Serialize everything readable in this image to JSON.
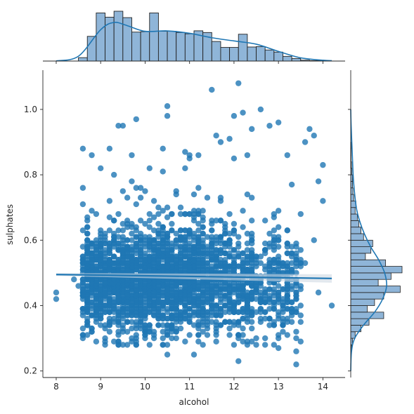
{
  "chart_data": {
    "type": "scatter",
    "subtype": "jointplot-with-regression",
    "title": "",
    "xlabel": "alcohol",
    "ylabel": "sulphates",
    "xlim": [
      7.7,
      14.5
    ],
    "ylim": [
      0.18,
      1.12
    ],
    "x_ticks": [
      8,
      9,
      10,
      11,
      12,
      13,
      14
    ],
    "y_ticks": [
      0.2,
      0.4,
      0.6,
      0.8,
      1.0
    ],
    "x_tick_labels": [
      "8",
      "9",
      "10",
      "11",
      "12",
      "13",
      "14"
    ],
    "y_tick_labels": [
      "0.2",
      "0.4",
      "0.6",
      "0.8",
      "1.0"
    ],
    "grid": false,
    "legend": "none",
    "point_color": "#1f77b4",
    "point_count_estimate": 3000,
    "regression": {
      "x": [
        8.0,
        14.2
      ],
      "y": [
        0.495,
        0.483
      ]
    },
    "outlier_points": [
      {
        "x": 12.1,
        "y": 1.08
      },
      {
        "x": 11.5,
        "y": 1.06
      },
      {
        "x": 10.5,
        "y": 1.01
      },
      {
        "x": 12.6,
        "y": 1.0
      },
      {
        "x": 12.0,
        "y": 0.98
      },
      {
        "x": 12.2,
        "y": 0.99
      },
      {
        "x": 10.5,
        "y": 0.98
      },
      {
        "x": 9.8,
        "y": 0.97
      },
      {
        "x": 13.0,
        "y": 0.96
      },
      {
        "x": 9.5,
        "y": 0.95
      },
      {
        "x": 12.8,
        "y": 0.95
      },
      {
        "x": 12.4,
        "y": 0.94
      },
      {
        "x": 13.7,
        "y": 0.94
      },
      {
        "x": 13.8,
        "y": 0.92
      },
      {
        "x": 11.6,
        "y": 0.92
      },
      {
        "x": 9.4,
        "y": 0.95
      },
      {
        "x": 11.9,
        "y": 0.91
      },
      {
        "x": 11.7,
        "y": 0.9
      },
      {
        "x": 13.6,
        "y": 0.9
      },
      {
        "x": 8.6,
        "y": 0.88
      },
      {
        "x": 9.2,
        "y": 0.88
      },
      {
        "x": 10.4,
        "y": 0.88
      },
      {
        "x": 10.9,
        "y": 0.87
      },
      {
        "x": 12.3,
        "y": 0.86
      },
      {
        "x": 13.2,
        "y": 0.86
      },
      {
        "x": 11.2,
        "y": 0.86
      },
      {
        "x": 14.0,
        "y": 0.83
      },
      {
        "x": 13.9,
        "y": 0.78
      },
      {
        "x": 14.0,
        "y": 0.72
      },
      {
        "x": 14.2,
        "y": 0.4
      },
      {
        "x": 8.0,
        "y": 0.44
      },
      {
        "x": 8.0,
        "y": 0.42
      },
      {
        "x": 13.4,
        "y": 0.22
      },
      {
        "x": 12.1,
        "y": 0.23
      },
      {
        "x": 10.5,
        "y": 0.25
      },
      {
        "x": 11.1,
        "y": 0.25
      },
      {
        "x": 8.4,
        "y": 0.48
      },
      {
        "x": 8.5,
        "y": 0.46
      },
      {
        "x": 8.6,
        "y": 0.76
      },
      {
        "x": 13.8,
        "y": 0.6
      },
      {
        "x": 13.6,
        "y": 0.53
      },
      {
        "x": 13.9,
        "y": 0.44
      },
      {
        "x": 13.5,
        "y": 0.29
      },
      {
        "x": 13.0,
        "y": 0.27
      },
      {
        "x": 13.4,
        "y": 0.26
      }
    ],
    "cluster_bands": [
      {
        "x_min": 8.6,
        "x_max": 10.2,
        "y_center": 0.47,
        "y_spread": 0.075,
        "share": 0.42
      },
      {
        "x_min": 10.2,
        "x_max": 11.3,
        "y_center": 0.48,
        "y_spread": 0.08,
        "share": 0.3
      },
      {
        "x_min": 11.3,
        "x_max": 12.4,
        "y_center": 0.47,
        "y_spread": 0.08,
        "share": 0.18
      },
      {
        "x_min": 12.4,
        "x_max": 13.5,
        "y_center": 0.46,
        "y_spread": 0.075,
        "share": 0.1
      }
    ],
    "marginal_x_hist": {
      "bin_edges": [
        8.5,
        8.7,
        8.9,
        9.1,
        9.3,
        9.5,
        9.7,
        9.9,
        10.1,
        10.3,
        10.5,
        10.7,
        10.9,
        11.1,
        11.3,
        11.5,
        11.7,
        11.9,
        12.1,
        12.3,
        12.5,
        12.7,
        12.9,
        13.1,
        13.3,
        13.5,
        13.7,
        13.9,
        14.1
      ],
      "counts": [
        8,
        58,
        113,
        103,
        117,
        102,
        68,
        69,
        113,
        70,
        70,
        67,
        64,
        71,
        67,
        46,
        32,
        32,
        63,
        33,
        34,
        26,
        21,
        11,
        6,
        2,
        1,
        1
      ],
      "kde_x": [
        8.0,
        8.5,
        9.0,
        9.3,
        9.6,
        10.0,
        10.5,
        11.0,
        11.5,
        12.0,
        12.5,
        13.0,
        13.5,
        14.0,
        14.2
      ],
      "kde_y": [
        0.5,
        12,
        78,
        96,
        88,
        74,
        75,
        69,
        58,
        50,
        42,
        24,
        8,
        2,
        1
      ]
    },
    "marginal_y_hist": {
      "bin_edges": [
        0.22,
        0.24,
        0.26,
        0.28,
        0.3,
        0.32,
        0.34,
        0.36,
        0.38,
        0.4,
        0.42,
        0.44,
        0.46,
        0.48,
        0.5,
        0.52,
        0.54,
        0.56,
        0.58,
        0.6,
        0.62,
        0.64,
        0.66,
        0.68,
        0.7,
        0.72,
        0.74,
        0.76,
        0.78,
        0.8,
        0.82,
        0.84,
        0.86,
        0.88,
        0.9
      ],
      "counts": [
        1,
        1,
        2,
        5,
        12,
        28,
        50,
        90,
        45,
        65,
        90,
        135,
        75,
        110,
        140,
        95,
        40,
        55,
        60,
        35,
        28,
        22,
        18,
        12,
        14,
        8,
        6,
        5,
        5,
        3,
        2,
        1,
        1,
        1
      ],
      "kde_y": [
        0.2,
        0.26,
        0.3,
        0.34,
        0.38,
        0.42,
        0.46,
        0.5,
        0.54,
        0.58,
        0.62,
        0.66,
        0.7,
        0.78,
        0.86,
        0.95,
        1.0
      ],
      "kde_x": [
        0,
        2,
        10,
        32,
        60,
        80,
        90,
        85,
        70,
        50,
        34,
        22,
        14,
        7,
        4,
        1,
        0
      ]
    }
  }
}
